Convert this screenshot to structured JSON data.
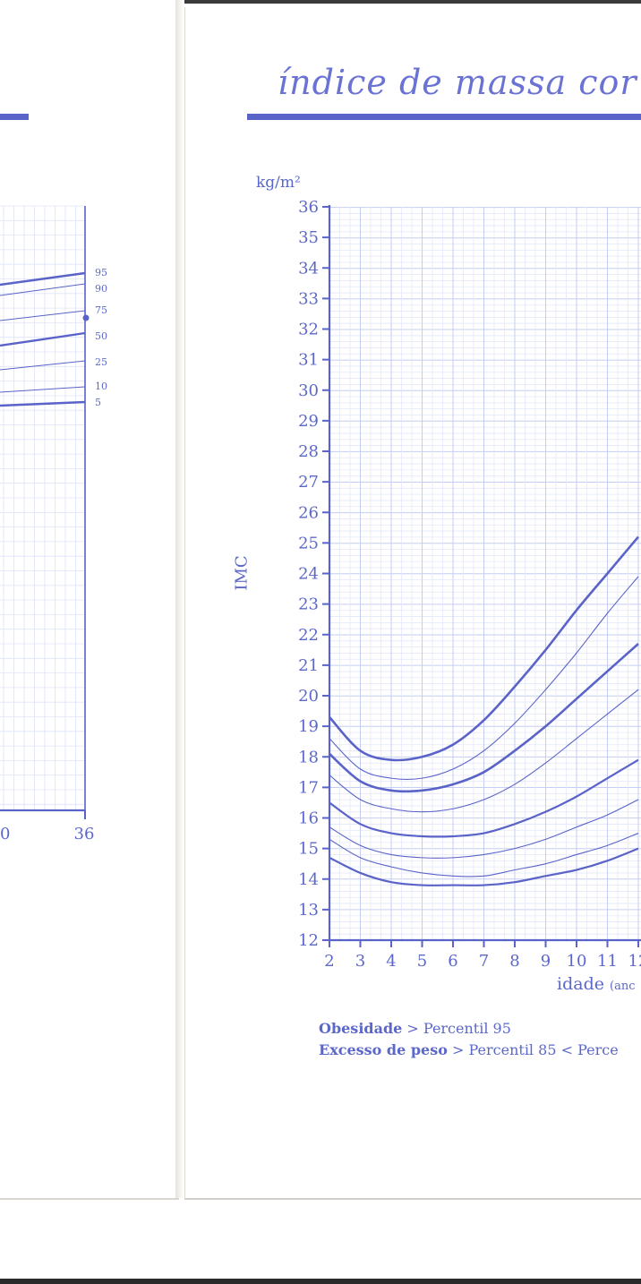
{
  "header": {
    "title": "índice de massa cor"
  },
  "chart_data": [
    {
      "type": "line",
      "title": "",
      "xlabel": "",
      "ylabel": "",
      "x_end_label": "36",
      "x_prev_label": "0",
      "visible_series": [
        {
          "name": "95",
          "y": [
            1.0
          ]
        },
        {
          "name": "90",
          "y": [
            1.0
          ]
        },
        {
          "name": "75",
          "y": [
            1.0
          ]
        },
        {
          "name": "50",
          "y": [
            1.0
          ]
        },
        {
          "name": "25",
          "y": [
            1.0
          ]
        },
        {
          "name": "10",
          "y": [
            1.0
          ]
        },
        {
          "name": "5",
          "y": [
            1.0
          ]
        }
      ]
    },
    {
      "type": "line",
      "title": "",
      "unit_label": "kg/m²",
      "ylabel": "IMC",
      "xlabel": "idade",
      "xlabel_unit": "(anc",
      "x_ticks": [
        "2",
        "3",
        "4",
        "5",
        "6",
        "7",
        "8",
        "9",
        "10",
        "11",
        "12"
      ],
      "y_ticks": [
        "12",
        "13",
        "14",
        "15",
        "16",
        "17",
        "18",
        "19",
        "20",
        "21",
        "22",
        "23",
        "24",
        "25",
        "26",
        "27",
        "28",
        "29",
        "30",
        "31",
        "32",
        "33",
        "34",
        "35",
        "36"
      ],
      "xlim": [
        2,
        12
      ],
      "ylim": [
        12,
        36
      ],
      "grid": true,
      "x": [
        2,
        3,
        4,
        5,
        6,
        7,
        8,
        9,
        10,
        11,
        12
      ],
      "series": [
        {
          "values": [
            19.3,
            18.2,
            17.9,
            18.0,
            18.4,
            19.2,
            20.3,
            21.5,
            22.8,
            24.0,
            25.2
          ]
        },
        {
          "values": [
            18.6,
            17.6,
            17.3,
            17.3,
            17.6,
            18.2,
            19.1,
            20.2,
            21.4,
            22.7,
            23.9
          ]
        },
        {
          "values": [
            18.1,
            17.2,
            16.9,
            16.9,
            17.1,
            17.5,
            18.2,
            19.0,
            19.9,
            20.8,
            21.7
          ]
        },
        {
          "values": [
            17.4,
            16.6,
            16.3,
            16.2,
            16.3,
            16.6,
            17.1,
            17.8,
            18.6,
            19.4,
            20.2
          ]
        },
        {
          "values": [
            16.5,
            15.8,
            15.5,
            15.4,
            15.4,
            15.5,
            15.8,
            16.2,
            16.7,
            17.3,
            17.9
          ]
        },
        {
          "values": [
            15.7,
            15.1,
            14.8,
            14.7,
            14.7,
            14.8,
            15.0,
            15.3,
            15.7,
            16.1,
            16.6
          ]
        },
        {
          "values": [
            15.3,
            14.7,
            14.4,
            14.2,
            14.1,
            14.1,
            14.3,
            14.5,
            14.8,
            15.1,
            15.5
          ]
        },
        {
          "values": [
            14.7,
            14.2,
            13.9,
            13.8,
            13.8,
            13.8,
            13.9,
            14.1,
            14.3,
            14.6,
            15.0
          ]
        }
      ]
    }
  ],
  "legend": {
    "line1_bold": "Obesidade",
    "line1_rest": " > Percentil 95",
    "line2_bold": "Excesso de peso",
    "line2_rest": " > Percentil 85 < Perce"
  }
}
